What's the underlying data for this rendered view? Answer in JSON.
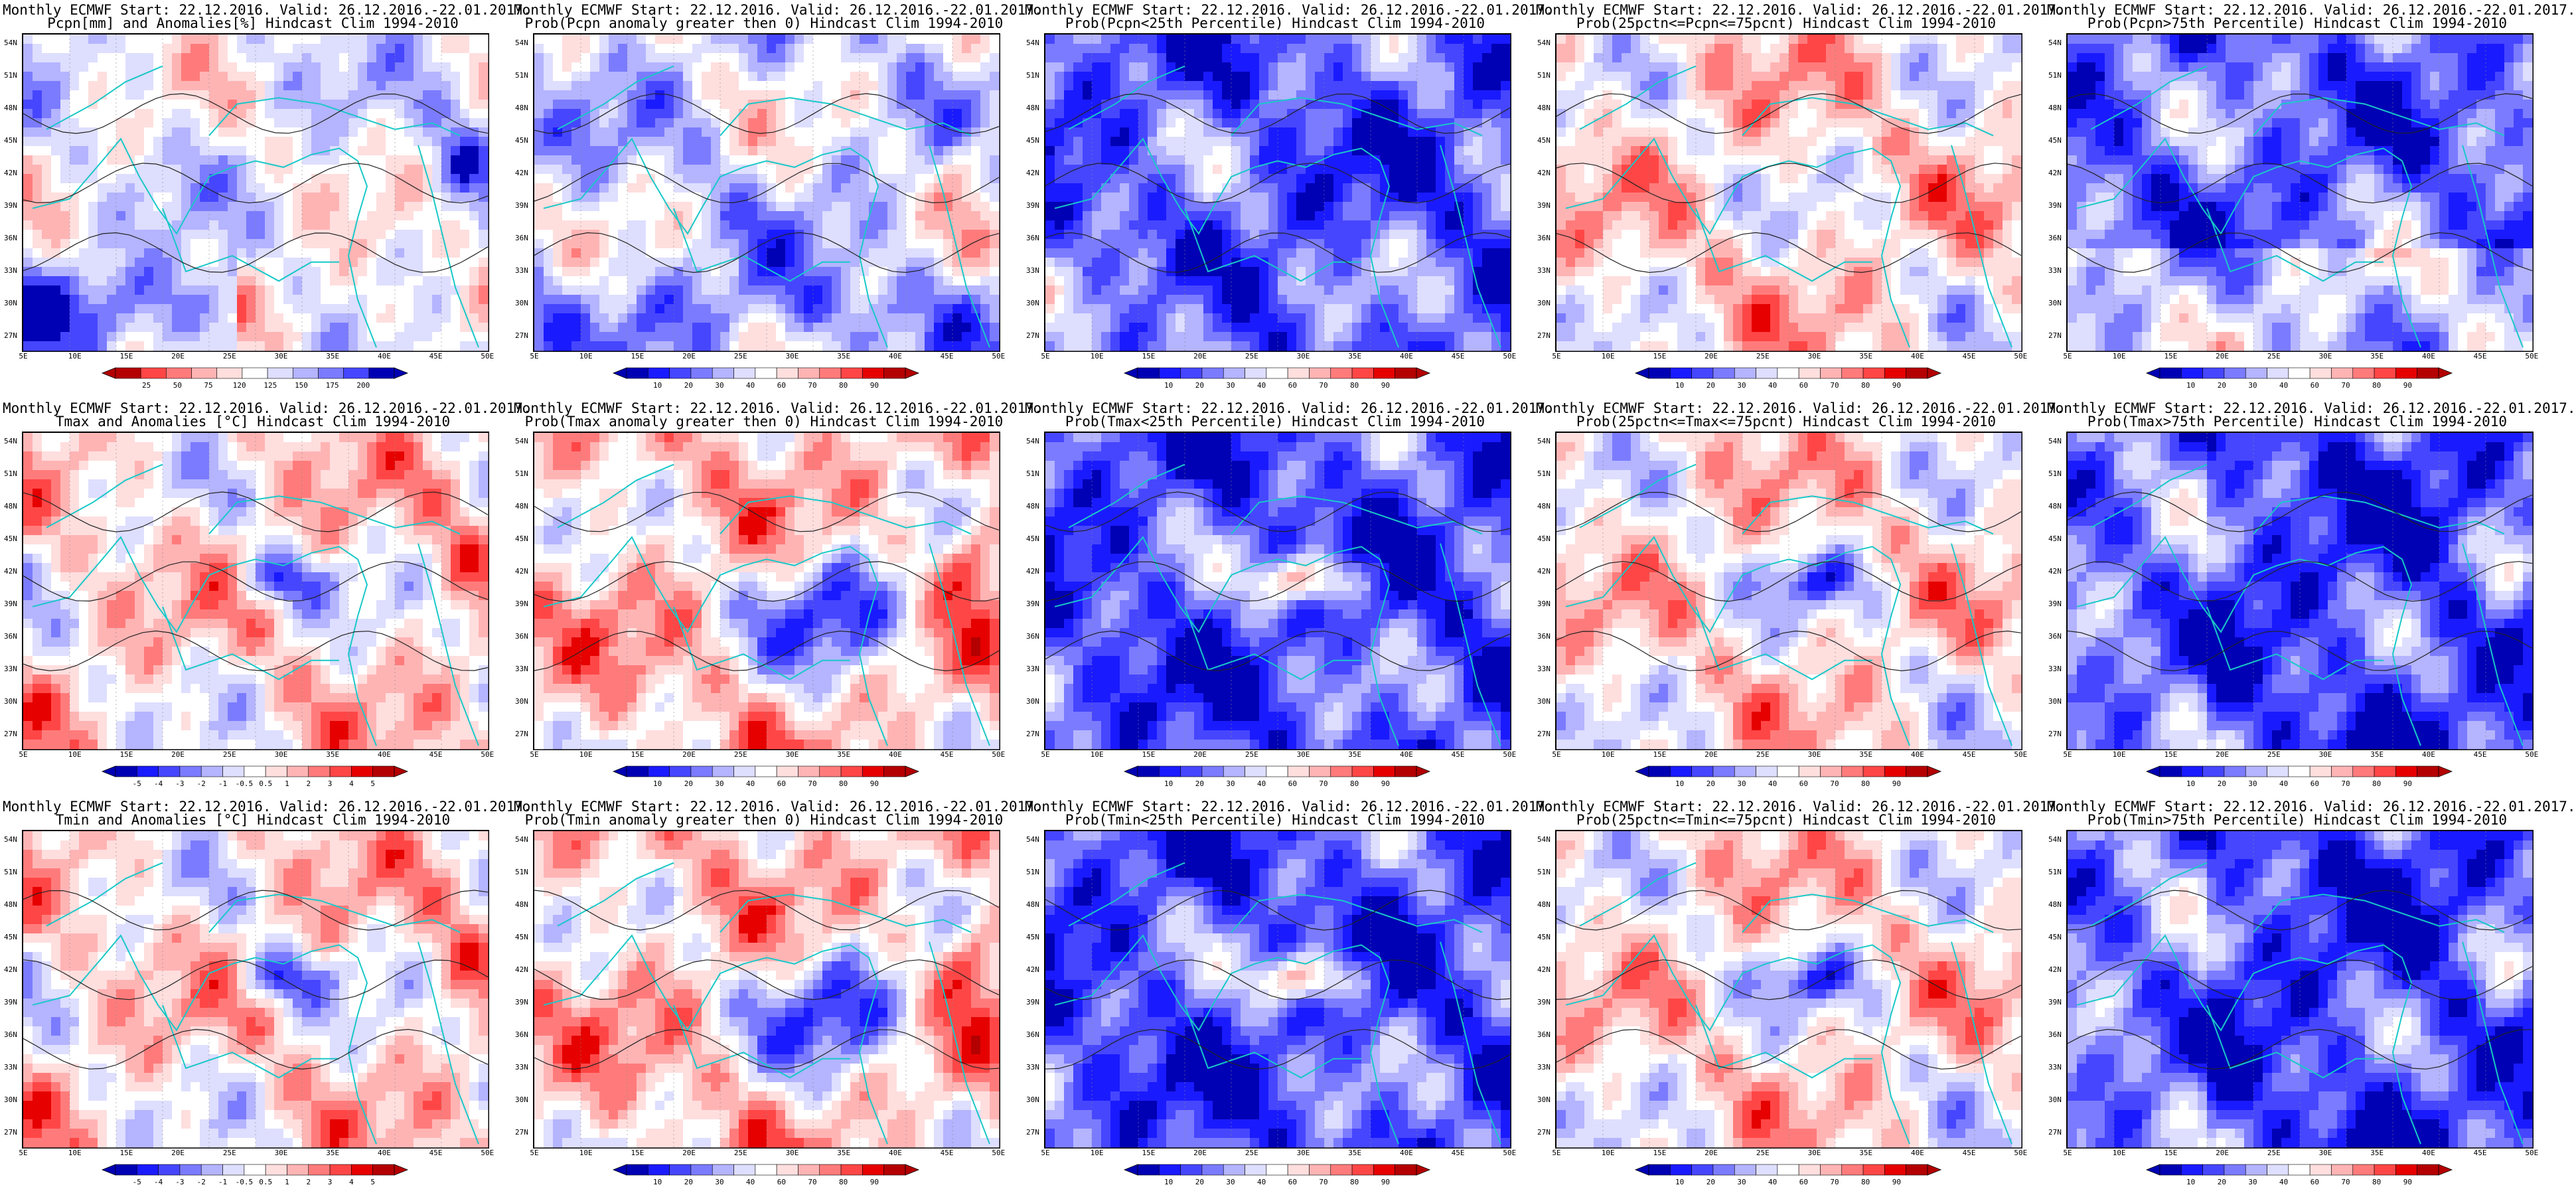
{
  "figure": {
    "columns": [
      "rgb",
      "probability"
    ]
  },
  "map": {
    "lat_labels": [
      "54N",
      "51N",
      "48N",
      "45N",
      "42N",
      "39N",
      "36N",
      "33N",
      "30N",
      "27N"
    ],
    "lon_labels": [
      "5E",
      "10E",
      "15E",
      "20E",
      "25E",
      "30E",
      "35E",
      "40E",
      "45E",
      "50E"
    ]
  },
  "colorbars": {
    "precip": [
      "25",
      "50",
      "75",
      "120",
      "125",
      "150",
      "175",
      "200"
    ],
    "prob": [
      "10",
      "20",
      "30",
      "40",
      "60",
      "70",
      "80",
      "90"
    ],
    "temp": [
      "-5",
      "-4",
      "-3",
      "-2",
      "-1",
      "-0.5",
      "0.5",
      "1",
      "2",
      "3",
      "4",
      "5"
    ]
  },
  "panels": [
    {
      "title1": "Monthly ECMWF Start: 22.12.2016. Valid: 26.12.2016.-22.01.2017.",
      "title2": "Pcpn[mm] and Anomalies[%] Hindcast Clim 1994-2010",
      "colorbar": "precip",
      "mode": "pcp_anom"
    },
    {
      "title1": "Monthly ECMWF Start: 22.12.2016. Valid: 26.12.2016.-22.01.2017.",
      "title2": "Prob(Pcpn anomaly greater then 0) Hindcast Clim 1994-2010",
      "colorbar": "prob",
      "mode": "pcp_pos"
    },
    {
      "title1": "Monthly ECMWF Start: 22.12.2016. Valid: 26.12.2016.-22.01.2017.",
      "title2": "Prob(Pcpn<25th Percentile) Hindcast Clim 1994-2010",
      "colorbar": "prob",
      "mode": "pcp_low"
    },
    {
      "title1": "Monthly ECMWF Start: 22.12.2016. Valid: 26.12.2016.-22.01.2017.",
      "title2": "Prob(25pctn<=Pcpn<=75pcnt) Hindcast Clim 1994-2010",
      "colorbar": "prob",
      "mode": "pcp_mid"
    },
    {
      "title1": "Monthly ECMWF Start: 22.12.2016. Valid: 26.12.2016.-22.01.2017.",
      "title2": "Prob(Pcpn>75th Percentile) Hindcast Clim 1994-2010",
      "colorbar": "prob",
      "mode": "pcp_high"
    },
    {
      "title1": "Monthly ECMWF Start: 22.12.2016. Valid: 26.12.2016.-22.01.2017.",
      "title2": "Tmax and Anomalies [°C] Hindcast Clim 1994-2010",
      "colorbar": "temp",
      "mode": "tmax_anom"
    },
    {
      "title1": "Monthly ECMWF Start: 22.12.2016. Valid: 26.12.2016.-22.01.2017.",
      "title2": "Prob(Tmax anomaly greater then 0) Hindcast Clim 1994-2010",
      "colorbar": "prob",
      "mode": "tmax_pos"
    },
    {
      "title1": "Monthly ECMWF Start: 22.12.2016. Valid: 26.12.2016.-22.01.2017.",
      "title2": "Prob(Tmax<25th Percentile) Hindcast Clim 1994-2010",
      "colorbar": "prob",
      "mode": "tmax_low"
    },
    {
      "title1": "Monthly ECMWF Start: 22.12.2016. Valid: 26.12.2016.-22.01.2017.",
      "title2": "Prob(25pctn<=Tmax<=75pcnt) Hindcast Clim 1994-2010",
      "colorbar": "prob",
      "mode": "tmax_mid"
    },
    {
      "title1": "Monthly ECMWF Start: 22.12.2016. Valid: 26.12.2016.-22.01.2017.",
      "title2": "Prob(Tmax>75th Percentile) Hindcast Clim 1994-2010",
      "colorbar": "prob",
      "mode": "tmax_high"
    },
    {
      "title1": "Monthly ECMWF Start: 22.12.2016. Valid: 26.12.2016.-22.01.2017.",
      "title2": "Tmin and Anomalies [°C] Hindcast Clim 1994-2010",
      "colorbar": "temp",
      "mode": "tmin_anom"
    },
    {
      "title1": "Monthly ECMWF Start: 22.12.2016. Valid: 26.12.2016.-22.01.2017.",
      "title2": "Prob(Tmin anomaly greater then 0) Hindcast Clim 1994-2010",
      "colorbar": "prob",
      "mode": "tmin_pos"
    },
    {
      "title1": "Monthly ECMWF Start: 22.12.2016. Valid: 26.12.2016.-22.01.2017.",
      "title2": "Prob(Tmin<25th Percentile) Hindcast Clim 1994-2010",
      "colorbar": "prob",
      "mode": "tmin_low"
    },
    {
      "title1": "Monthly ECMWF Start: 22.12.2016. Valid: 26.12.2016.-22.01.2017.",
      "title2": "Prob(25pctn<=Tmin<=75pcnt) Hindcast Clim 1994-2010",
      "colorbar": "prob",
      "mode": "tmin_mid"
    },
    {
      "title1": "Monthly ECMWF Start: 22.12.2016. Valid: 26.12.2016.-22.01.2017.",
      "title2": "Prob(Tmin>75th Percentile) Hindcast Clim 1994-2010",
      "colorbar": "prob",
      "mode": "tmin_high"
    }
  ]
}
